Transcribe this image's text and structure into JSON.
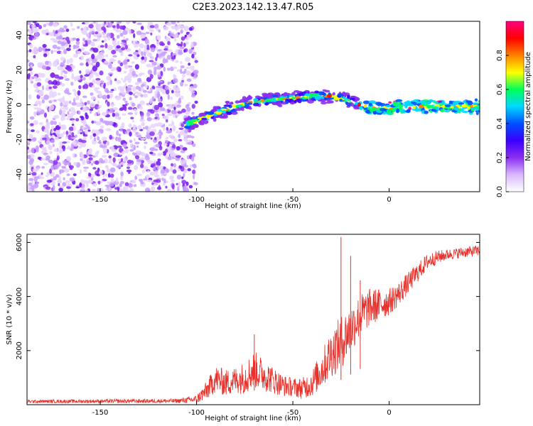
{
  "title": "C2E3.2023.142.13.47.R05",
  "chart_data": [
    {
      "type": "heatmap",
      "name": "spectrogram",
      "xlabel": "Height of straight line (km)",
      "ylabel": "Frequency (Hz)",
      "xlim": [
        -188,
        47
      ],
      "ylim": [
        -50,
        48
      ],
      "x_ticks": [
        -150,
        -100,
        -50,
        0
      ],
      "x_tick_labels": [
        "-150",
        "-100",
        "-50",
        "0"
      ],
      "y_ticks": [
        -40,
        -20,
        0,
        20,
        40
      ],
      "y_tick_labels": [
        "-40",
        "-20",
        "0",
        "20",
        "40"
      ],
      "noise_region_x": [
        -188,
        -100
      ],
      "signal_track": {
        "x": [
          -107,
          -100,
          -90,
          -80,
          -70,
          -60,
          -50,
          -40,
          -30,
          -20,
          -10,
          0,
          10,
          20,
          30,
          40,
          47
        ],
        "freq": [
          -12,
          -9,
          -5,
          -1,
          2,
          3,
          4,
          5,
          5,
          2,
          -2,
          -2,
          -1,
          -1,
          -1,
          -1,
          -1
        ]
      },
      "colorbar": {
        "label": "Normalized spectral amplitude",
        "range": [
          0,
          1
        ],
        "ticks": [
          0.0,
          0.2,
          0.4,
          0.6,
          0.8
        ],
        "tick_labels": [
          "0.0",
          "0.2",
          "0.4",
          "0.6",
          "0.8"
        ],
        "colors": [
          "#ffffff",
          "#d9b8ff",
          "#8b2ff0",
          "#3a00ff",
          "#0050ff",
          "#00d8ff",
          "#00ff5a",
          "#ffff00",
          "#ff8000",
          "#ff0000",
          "#ff0080"
        ]
      }
    },
    {
      "type": "line",
      "name": "snr",
      "xlabel": "Height of straight line (km)",
      "ylabel": "SNR (10 * v/v)",
      "xlim": [
        -188,
        47
      ],
      "ylim": [
        0,
        6300
      ],
      "x_ticks": [
        -150,
        -100,
        -50,
        0
      ],
      "x_tick_labels": [
        "-150",
        "-100",
        "-50",
        "0"
      ],
      "y_ticks": [
        2000,
        4000,
        6000
      ],
      "y_tick_labels": [
        "2000",
        "4000",
        "6000"
      ],
      "color": "#e8302a",
      "envelope": {
        "x": [
          -188,
          -110,
          -100,
          -95,
          -90,
          -85,
          -80,
          -75,
          -70,
          -65,
          -60,
          -55,
          -50,
          -45,
          -40,
          -35,
          -30,
          -25,
          -20,
          -15,
          -10,
          -5,
          0,
          5,
          10,
          15,
          20,
          25,
          30,
          35,
          40,
          47
        ],
        "mean": [
          120,
          140,
          200,
          500,
          950,
          800,
          900,
          1000,
          1300,
          1100,
          900,
          700,
          650,
          600,
          800,
          1300,
          1900,
          2300,
          2800,
          3300,
          3600,
          3700,
          3800,
          4100,
          4500,
          4900,
          5300,
          5450,
          5550,
          5600,
          5650,
          5700
        ],
        "amplitude": [
          60,
          80,
          150,
          350,
          500,
          500,
          500,
          600,
          700,
          600,
          500,
          400,
          350,
          400,
          500,
          700,
          900,
          1000,
          900,
          800,
          700,
          600,
          500,
          450,
          400,
          350,
          300,
          250,
          200,
          200,
          200,
          200
        ]
      },
      "spikes": [
        {
          "x": -70,
          "y": 2600
        },
        {
          "x": -25,
          "y": 6200
        },
        {
          "x": -20,
          "y": 5500
        },
        {
          "x": -15,
          "y": 4600
        }
      ]
    }
  ]
}
